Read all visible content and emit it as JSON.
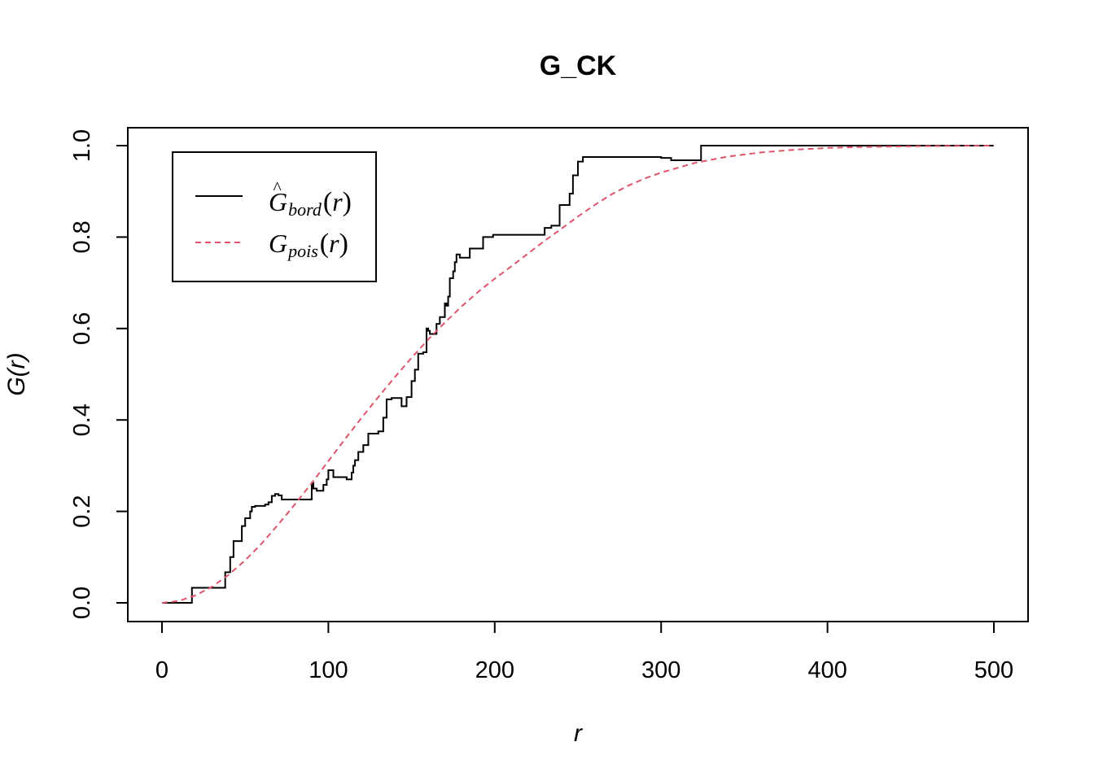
{
  "chart_data": {
    "type": "line",
    "title": "G_CK",
    "xlabel": "r",
    "ylabel": "G(r)",
    "xlim": [
      0,
      500
    ],
    "ylim": [
      0,
      1
    ],
    "x_ticks": [
      "0",
      "100",
      "200",
      "300",
      "400",
      "500"
    ],
    "y_ticks": [
      "0.0",
      "0.2",
      "0.4",
      "0.6",
      "0.8",
      "1.0"
    ],
    "legend": {
      "position": "top-left",
      "entries": [
        {
          "base": "G",
          "hat": "^",
          "subscript": "bord",
          "arg": "r"
        },
        {
          "base": "G",
          "hat": "",
          "subscript": "pois",
          "arg": "r"
        }
      ]
    },
    "series": [
      {
        "name": "Ĝbord(r)",
        "color": "#000000",
        "dash": "solid",
        "step": true,
        "x": [
          0,
          18,
          38,
          41,
          43,
          48,
          50,
          53,
          54,
          56,
          62,
          64,
          66,
          68,
          70,
          72,
          90,
          91,
          93,
          97,
          99,
          100,
          103,
          111,
          114,
          115,
          116,
          118,
          121,
          124,
          130,
          133,
          135,
          138,
          144,
          147,
          150,
          152,
          154,
          157,
          159,
          160,
          161,
          165,
          167,
          170,
          171,
          172,
          173,
          175,
          176,
          177,
          179,
          185,
          189,
          193,
          199,
          230,
          234,
          239,
          243,
          245,
          247,
          250,
          253,
          300,
          306,
          323,
          324,
          500
        ],
        "y": [
          0,
          0.033,
          0.067,
          0.1,
          0.135,
          0.168,
          0.185,
          0.2,
          0.21,
          0.212,
          0.215,
          0.22,
          0.234,
          0.238,
          0.235,
          0.226,
          0.262,
          0.25,
          0.245,
          0.258,
          0.27,
          0.29,
          0.275,
          0.27,
          0.285,
          0.3,
          0.312,
          0.33,
          0.345,
          0.37,
          0.375,
          0.405,
          0.445,
          0.448,
          0.43,
          0.45,
          0.485,
          0.51,
          0.545,
          0.548,
          0.6,
          0.595,
          0.588,
          0.61,
          0.625,
          0.655,
          0.65,
          0.67,
          0.71,
          0.725,
          0.745,
          0.762,
          0.755,
          0.775,
          0.775,
          0.8,
          0.805,
          0.82,
          0.825,
          0.87,
          0.87,
          0.895,
          0.935,
          0.965,
          0.975,
          0.973,
          0.968,
          0.968,
          1.0,
          1.0
        ]
      },
      {
        "name": "Gpois(r)",
        "color": "#DF536B",
        "dash": "dashed",
        "step": false,
        "x": [
          0,
          10,
          20,
          30,
          40,
          50,
          60,
          70,
          80,
          90,
          100,
          110,
          120,
          130,
          140,
          150,
          160,
          170,
          180,
          190,
          200,
          210,
          220,
          230,
          240,
          250,
          260,
          270,
          280,
          290,
          300,
          320,
          340,
          360,
          380,
          400,
          420,
          440,
          460,
          480,
          500
        ],
        "y": [
          0,
          0.004,
          0.016,
          0.035,
          0.061,
          0.093,
          0.13,
          0.172,
          0.216,
          0.262,
          0.31,
          0.358,
          0.405,
          0.45,
          0.494,
          0.536,
          0.576,
          0.613,
          0.648,
          0.68,
          0.709,
          0.736,
          0.764,
          0.792,
          0.818,
          0.845,
          0.87,
          0.893,
          0.912,
          0.928,
          0.941,
          0.962,
          0.976,
          0.985,
          0.991,
          0.995,
          0.997,
          0.998,
          0.999,
          0.9995,
          1.0
        ]
      }
    ]
  }
}
